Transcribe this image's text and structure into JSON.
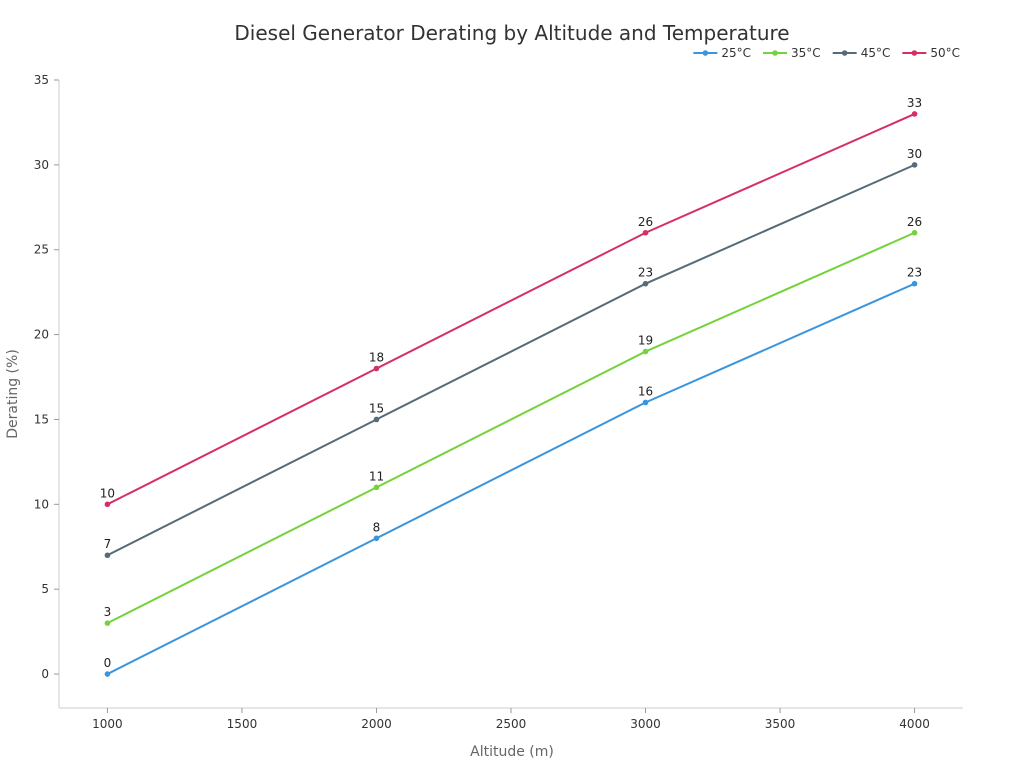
{
  "chart_data": {
    "type": "line",
    "title": "Diesel Generator Derating by Altitude and Temperature",
    "xlabel": "Altitude (m)",
    "ylabel": "Derating (%)",
    "x": [
      1000,
      2000,
      3000,
      4000
    ],
    "xlim": [
      820,
      4180
    ],
    "ylim": [
      -2,
      35
    ],
    "xticks": [
      1000,
      1500,
      2000,
      2500,
      3000,
      3500,
      4000
    ],
    "yticks": [
      0,
      5,
      10,
      15,
      20,
      25,
      30,
      35
    ],
    "grid": false,
    "legend_position": "top-right",
    "series": [
      {
        "name": "25°C",
        "color": "#3b95dc",
        "values": [
          0,
          8,
          16,
          23
        ]
      },
      {
        "name": "35°C",
        "color": "#74d23a",
        "values": [
          3,
          11,
          19,
          26
        ]
      },
      {
        "name": "45°C",
        "color": "#566b77",
        "values": [
          7,
          15,
          23,
          30
        ]
      },
      {
        "name": "50°C",
        "color": "#d62f62",
        "values": [
          10,
          18,
          26,
          33
        ]
      }
    ]
  }
}
